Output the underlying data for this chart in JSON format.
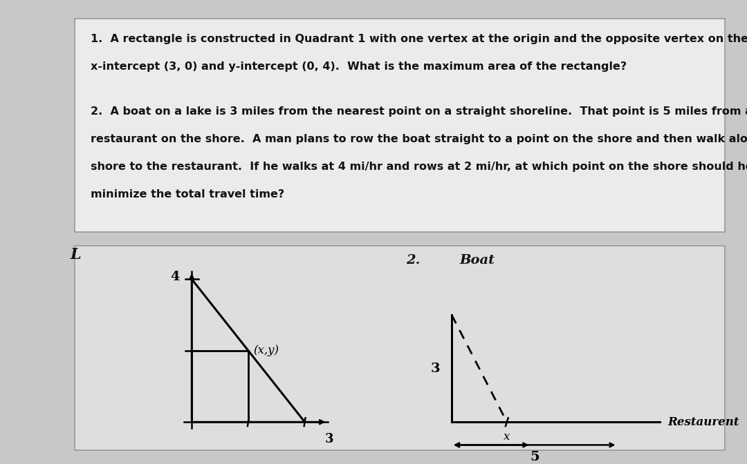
{
  "bg_outer": "#c8c8c8",
  "bg_text_box": "#ebebeb",
  "bg_diag_box": "#dedede",
  "text_color": "#111111",
  "q1_text_line1": "1.  A rectangle is constructed in Quadrant 1 with one vertex at the origin and the opposite vertex on the line with",
  "q1_text_line2": "x-intercept (3, 0) and y-intercept (0, 4).  What is the maximum area of the rectangle?",
  "q2_text_line1": "2.  A boat on a lake is 3 miles from the nearest point on a straight shoreline.  That point is 5 miles from a",
  "q2_text_line2": "restaurant on the shore.  A man plans to row the boat straight to a point on the shore and then walk along the",
  "q2_text_line3": "shore to the restaurant.  If he walks at 4 mi/hr and rows at 2 mi/hr, at which point on the shore should he land to",
  "q2_text_line4": "minimize the total travel time?",
  "label_L": "L",
  "label_1dot": "1.",
  "label_4": "4",
  "label_3_diag1": "3",
  "label_xy": "(x,y)",
  "label_2dot": "2.",
  "label_boat": "Boat",
  "label_3_diag2": "3",
  "label_x": "x",
  "label_restaurent": "Restaurent",
  "label_5": "5"
}
